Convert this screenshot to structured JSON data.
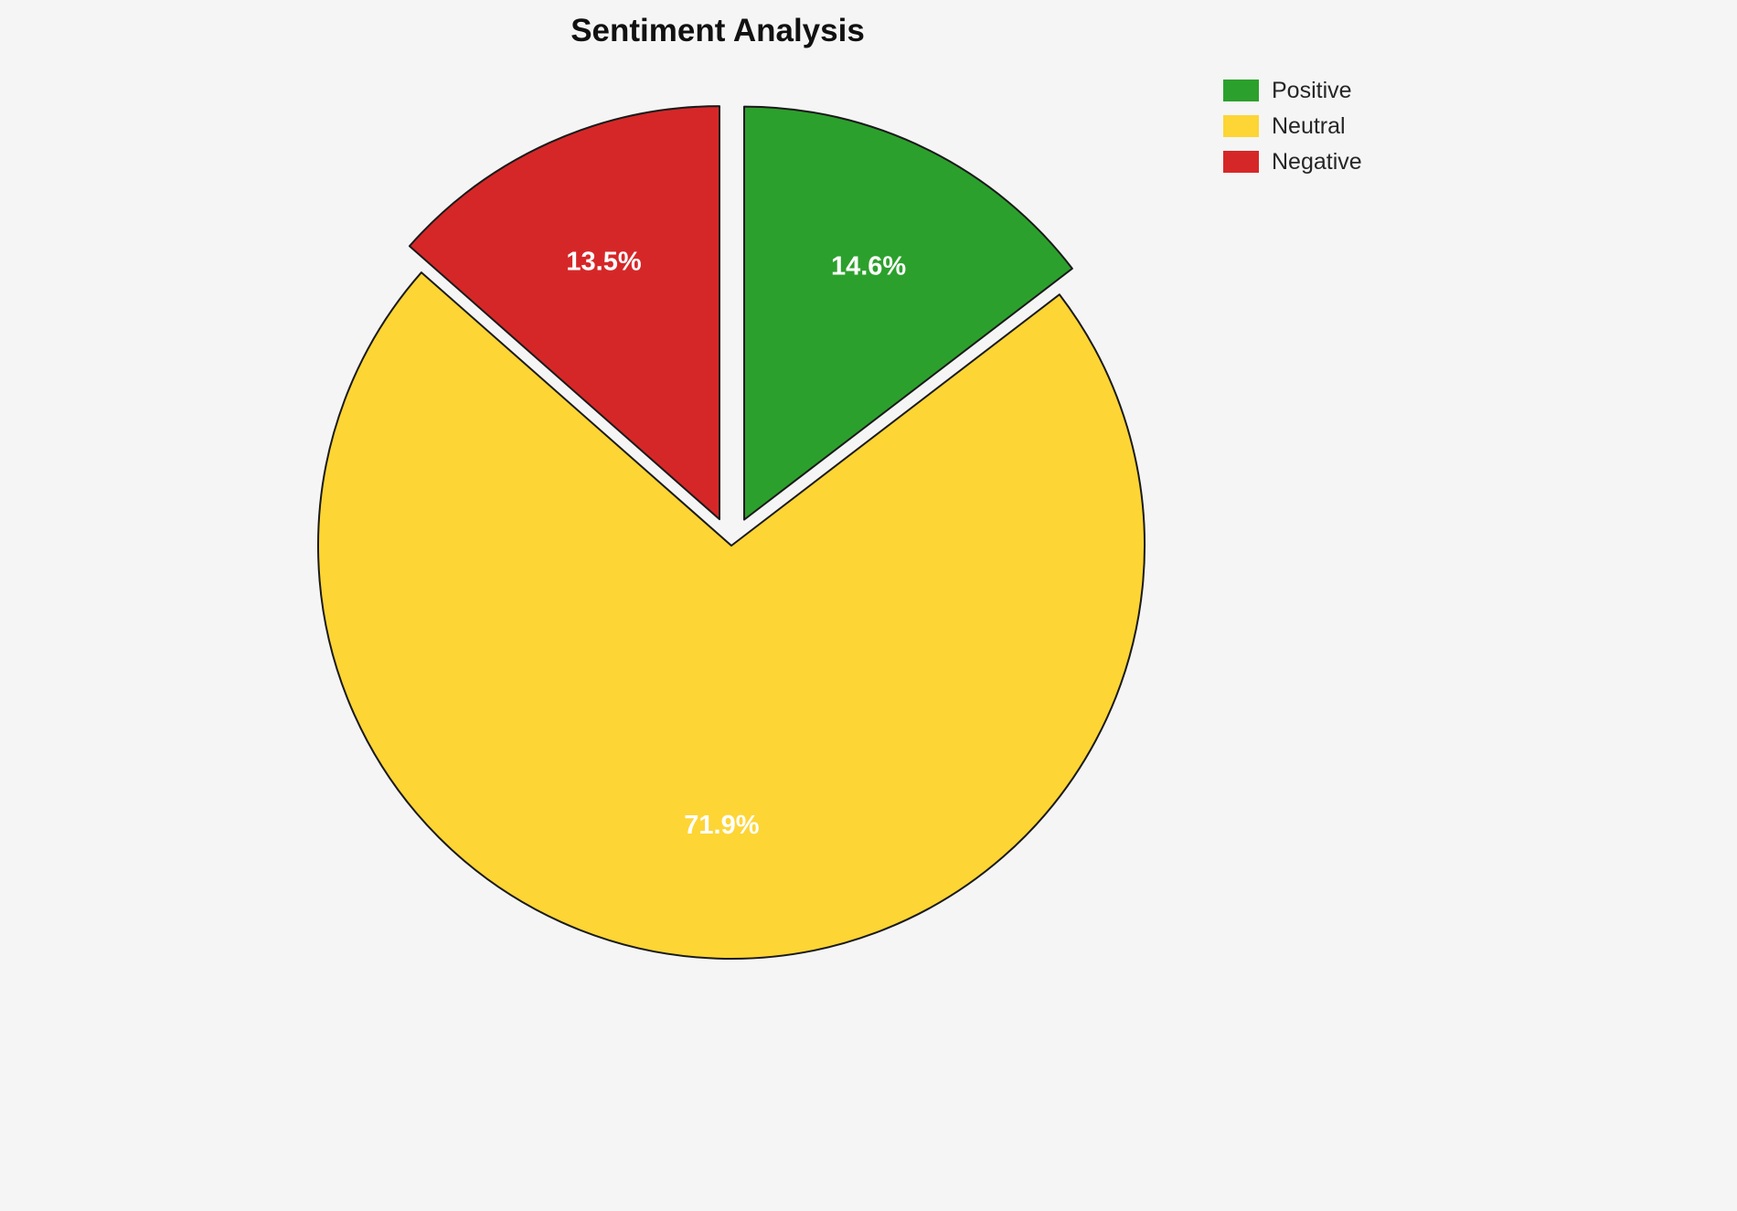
{
  "title": "Sentiment Analysis",
  "background_color": "#f5f5f5",
  "chart_data": {
    "type": "pie",
    "title": "Sentiment Analysis",
    "categories": [
      "Positive",
      "Neutral",
      "Negative"
    ],
    "values": [
      14.6,
      71.9,
      13.5
    ],
    "slices": [
      {
        "label": "Positive",
        "value": 14.6,
        "pct_label": "14.6%",
        "color": "#2ca02c",
        "explode": 0.07
      },
      {
        "label": "Neutral",
        "value": 71.9,
        "pct_label": "71.9%",
        "color": "#fdd535",
        "explode": 0.0
      },
      {
        "label": "Negative",
        "value": 13.5,
        "pct_label": "13.5%",
        "color": "#d62728",
        "explode": 0.07
      }
    ],
    "label_color": "#ffffff",
    "edge_color": "#1a1a1a",
    "legend_position": "upper right",
    "legend_labels": [
      "Positive",
      "Neutral",
      "Negative"
    ]
  }
}
